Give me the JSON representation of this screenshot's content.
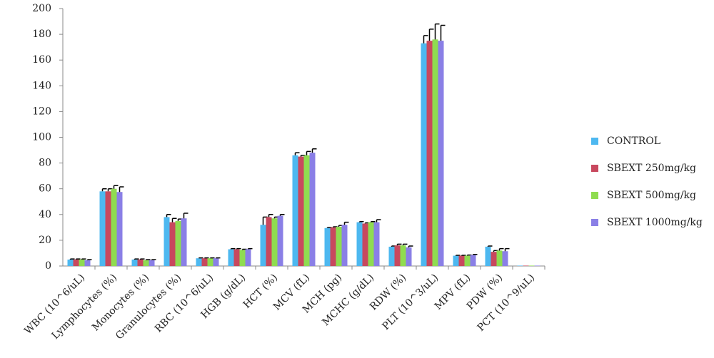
{
  "chart_data": {
    "type": "bar",
    "categories": [
      "WBC (10^6/uL)",
      "Lymphocytes (%)",
      "Monocytes (%)",
      "Granulocytes (%)",
      "RBC (10^6/uL)",
      "HGB (g/dL)",
      "HCT (%)",
      "MCV (fL)",
      "MCH (pg)",
      "MCHC (g/dL)",
      "RDW (%)",
      "PLT (10^3/uL)",
      "MPV (fL)",
      "PDW (%)",
      "PCT (10^9/uL)"
    ],
    "series": [
      {
        "name": "CONTROL",
        "color": "#4db8f0",
        "values": [
          5,
          58,
          5,
          38,
          6,
          13,
          32,
          86,
          29.5,
          34,
          15,
          173,
          8,
          15,
          0.3
        ],
        "errors": [
          0.5,
          2,
          0.5,
          2,
          0.3,
          0.5,
          6,
          2,
          0.5,
          0.5,
          0.5,
          6,
          0.3,
          0.5,
          0
        ]
      },
      {
        "name": "SBEXT 250mg/kg",
        "color": "#c8485e",
        "values": [
          5,
          58,
          5,
          34,
          6,
          13,
          38,
          85,
          30,
          33,
          16,
          175,
          8,
          11,
          0.3
        ],
        "errors": [
          0.5,
          2,
          0.5,
          3,
          0.3,
          0.5,
          2,
          1,
          0.5,
          0.5,
          1,
          9,
          0.3,
          1,
          0
        ]
      },
      {
        "name": "SBEXT 500mg/kg",
        "color": "#8fdc50",
        "values": [
          5,
          60,
          4.5,
          35,
          6,
          12.5,
          37,
          86,
          30.5,
          34,
          16,
          176,
          8,
          12,
          0.3
        ],
        "errors": [
          0.5,
          2.5,
          0.5,
          1.5,
          0.3,
          0.5,
          1,
          3,
          1,
          0.5,
          1,
          12,
          0.5,
          1.5,
          0
        ]
      },
      {
        "name": "SBEXT 1000mg/kg",
        "color": "#8a7fe6",
        "values": [
          4.5,
          57.5,
          4.5,
          37,
          6,
          13,
          39,
          88,
          32,
          34,
          14.5,
          175,
          8.5,
          11.5,
          0.3
        ],
        "errors": [
          0.5,
          4,
          0.5,
          4,
          0.3,
          0.5,
          1,
          3,
          2,
          2,
          1,
          12,
          0.5,
          2,
          0
        ]
      }
    ],
    "ylim": [
      0,
      200
    ],
    "yticks": [
      0,
      20,
      40,
      60,
      80,
      100,
      120,
      140,
      160,
      180,
      200
    ]
  }
}
